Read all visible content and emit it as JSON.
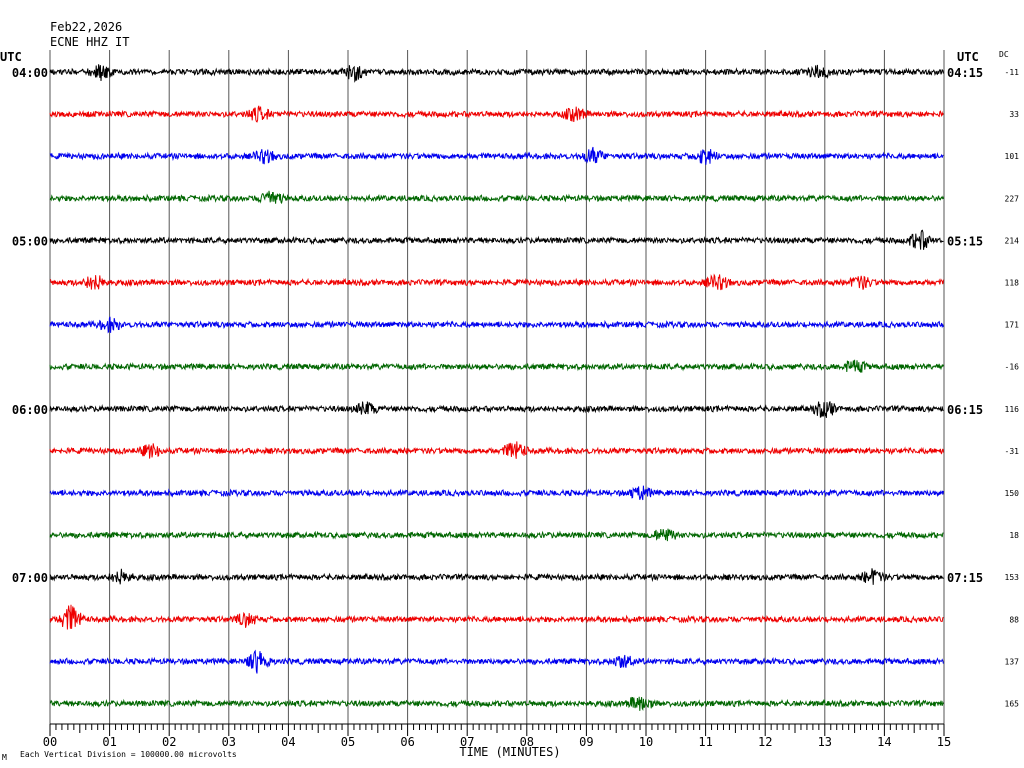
{
  "header": {
    "date": "Feb22,2026",
    "station": "ECNE HHZ IT"
  },
  "chart_data": {
    "type": "line",
    "title": "",
    "xlabel": "TIME (MINUTES)",
    "ylabel": "",
    "x_ticks": [
      "00",
      "01",
      "02",
      "03",
      "04",
      "05",
      "06",
      "07",
      "08",
      "09",
      "10",
      "11",
      "12",
      "13",
      "14",
      "15"
    ],
    "xlim": [
      0,
      15
    ],
    "left_timezone": "UTC",
    "right_timezone": "UTC",
    "dc_label": "DC",
    "scale_note": "Each Vertical Division = 100000.00 microvolts",
    "corner_mark": "M",
    "trace_colors": [
      "#000000",
      "#ee0000",
      "#0000ee",
      "#006600"
    ],
    "hour_labels_left": [
      {
        "row": 0,
        "text": "04:00"
      },
      {
        "row": 4,
        "text": "05:00"
      },
      {
        "row": 8,
        "text": "06:00"
      },
      {
        "row": 12,
        "text": "07:00"
      }
    ],
    "hour_labels_right": [
      {
        "row": 0,
        "text": "04:15"
      },
      {
        "row": 4,
        "text": "05:15"
      },
      {
        "row": 8,
        "text": "06:15"
      },
      {
        "row": 12,
        "text": "07:15"
      }
    ],
    "dc_offsets": [
      "-11",
      "33",
      "101",
      "227",
      "214",
      "118",
      "171",
      "-16",
      "116",
      "-31",
      "150",
      "18",
      "153",
      "88",
      "137",
      "165"
    ],
    "events": [
      {
        "row": 0,
        "minute": 0.85,
        "amp": 7
      },
      {
        "row": 0,
        "minute": 5.1,
        "amp": 8
      },
      {
        "row": 0,
        "minute": 12.9,
        "amp": 6
      },
      {
        "row": 1,
        "minute": 3.5,
        "amp": 6
      },
      {
        "row": 1,
        "minute": 8.8,
        "amp": 6
      },
      {
        "row": 2,
        "minute": 3.6,
        "amp": 6
      },
      {
        "row": 2,
        "minute": 9.1,
        "amp": 7
      },
      {
        "row": 2,
        "minute": 11.0,
        "amp": 7
      },
      {
        "row": 3,
        "minute": 3.7,
        "amp": 8
      },
      {
        "row": 4,
        "minute": 14.6,
        "amp": 9
      },
      {
        "row": 5,
        "minute": 0.75,
        "amp": 7
      },
      {
        "row": 5,
        "minute": 11.2,
        "amp": 7
      },
      {
        "row": 5,
        "minute": 13.6,
        "amp": 6
      },
      {
        "row": 6,
        "minute": 1.0,
        "amp": 6
      },
      {
        "row": 7,
        "minute": 13.5,
        "amp": 6
      },
      {
        "row": 8,
        "minute": 5.3,
        "amp": 6
      },
      {
        "row": 8,
        "minute": 13.0,
        "amp": 8
      },
      {
        "row": 9,
        "minute": 1.7,
        "amp": 6
      },
      {
        "row": 9,
        "minute": 7.8,
        "amp": 9
      },
      {
        "row": 10,
        "minute": 9.9,
        "amp": 6
      },
      {
        "row": 11,
        "minute": 10.3,
        "amp": 6
      },
      {
        "row": 12,
        "minute": 1.2,
        "amp": 6
      },
      {
        "row": 12,
        "minute": 13.8,
        "amp": 7
      },
      {
        "row": 13,
        "minute": 0.35,
        "amp": 13
      },
      {
        "row": 13,
        "minute": 3.3,
        "amp": 6
      },
      {
        "row": 14,
        "minute": 3.5,
        "amp": 11
      },
      {
        "row": 14,
        "minute": 9.6,
        "amp": 6
      },
      {
        "row": 15,
        "minute": 9.9,
        "amp": 8
      }
    ]
  }
}
